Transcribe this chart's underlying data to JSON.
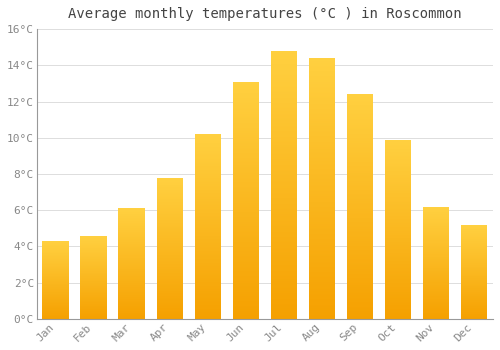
{
  "title": "Average monthly temperatures (°C ) in Roscommon",
  "months": [
    "Jan",
    "Feb",
    "Mar",
    "Apr",
    "May",
    "Jun",
    "Jul",
    "Aug",
    "Sep",
    "Oct",
    "Nov",
    "Dec"
  ],
  "temperatures": [
    4.3,
    4.6,
    6.1,
    7.8,
    10.2,
    13.1,
    14.8,
    14.4,
    12.4,
    9.9,
    6.2,
    5.2
  ],
  "bar_color_bottom": "#F5A000",
  "bar_color_top": "#FFD040",
  "ylim": [
    0,
    16
  ],
  "yticks": [
    0,
    2,
    4,
    6,
    8,
    10,
    12,
    14,
    16
  ],
  "background_color": "#FFFFFF",
  "grid_color": "#DDDDDD",
  "title_fontsize": 10,
  "tick_fontsize": 8,
  "font_family": "monospace",
  "bar_width": 0.7
}
